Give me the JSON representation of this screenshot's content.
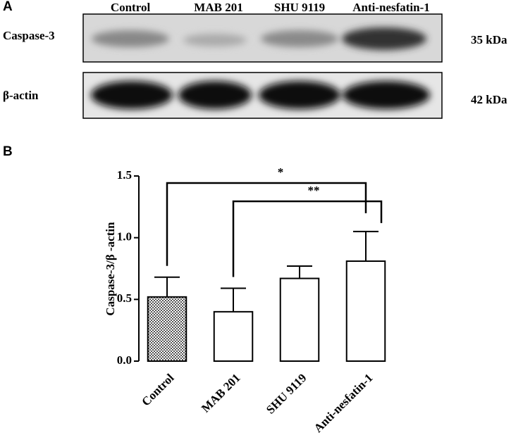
{
  "panel_a": {
    "label": "A",
    "lanes": [
      "Control",
      "MAB 201",
      "SHU 9119",
      "Anti-nesfatin-1"
    ],
    "rows": [
      {
        "name": "Caspase-3",
        "size": "35 kDa"
      },
      {
        "name": "β-actin",
        "size": "42 kDa"
      }
    ]
  },
  "chart_data": {
    "type": "bar",
    "label": "B",
    "ylabel": "Caspase-3/β -actin",
    "categories": [
      "Control",
      "MAB 201",
      "SHU 9119",
      "Anti-nesfatin-1"
    ],
    "values": [
      0.52,
      0.4,
      0.67,
      0.81
    ],
    "errors": [
      0.16,
      0.19,
      0.1,
      0.24
    ],
    "color": "#ffffff",
    "ylim": [
      0,
      1.5
    ],
    "yticks": [
      {
        "value": 0,
        "label": "0.0"
      },
      {
        "value": 0.5,
        "label": "0.5"
      },
      {
        "value": 1,
        "label": "1.0"
      },
      {
        "value": 1.5,
        "label": "1.5"
      }
    ],
    "annotations": [
      "*",
      "**"
    ]
  }
}
